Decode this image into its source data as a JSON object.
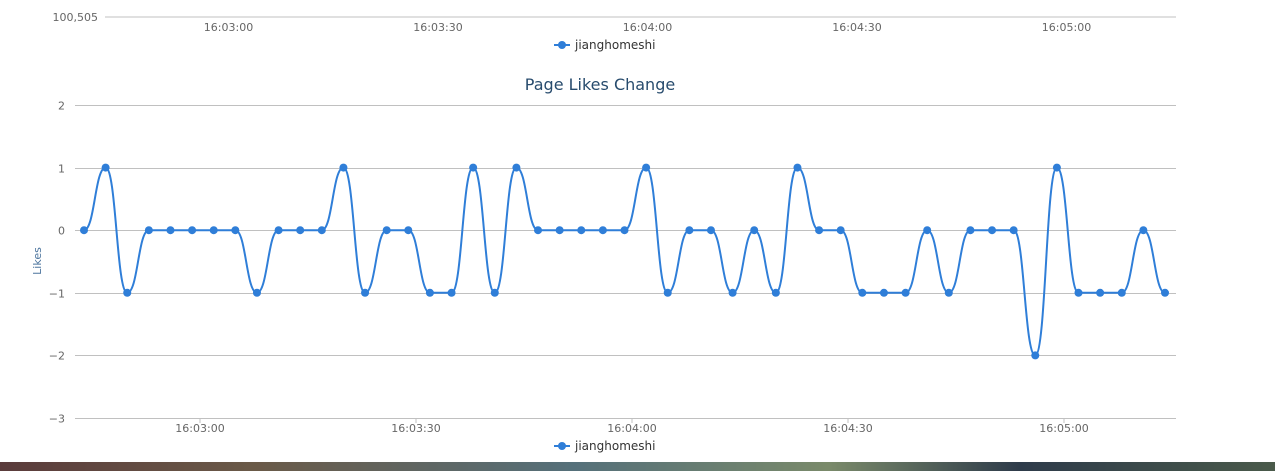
{
  "chart_data": [
    {
      "type": "line",
      "title": "",
      "ylabel": "",
      "y_tick_labels": [
        "100,505"
      ],
      "x_tick_labels": [
        "16:03:00",
        "16:03:30",
        "16:04:00",
        "16:04:30",
        "16:05:00"
      ],
      "legend": {
        "placement": "bottom-center",
        "entries": [
          "jianghomeshi"
        ]
      },
      "colors": {
        "series": "#2f7ed8",
        "grid": "#c0c0c0"
      }
    },
    {
      "type": "line",
      "title": "Page Likes Change",
      "xlabel": "",
      "ylabel": "Likes",
      "ylim": [
        -3,
        2
      ],
      "y_ticks": [
        2,
        1,
        0,
        -1,
        -2,
        -3
      ],
      "y_tick_labels": [
        "2",
        "1",
        "0",
        "−1",
        "−2",
        "−3"
      ],
      "x_tick_labels": [
        "16:03:00",
        "16:03:30",
        "16:04:00",
        "16:04:30",
        "16:05:00"
      ],
      "grid": true,
      "legend": {
        "placement": "bottom-center",
        "entries": [
          "jianghomeshi"
        ]
      },
      "colors": {
        "series": "#2f7ed8",
        "grid": "#c0c0c0",
        "title": "#274b6d"
      },
      "series": [
        {
          "name": "jianghomeshi",
          "values": [
            0,
            1,
            -1,
            0,
            0,
            0,
            0,
            0,
            -1,
            0,
            0,
            0,
            1,
            -1,
            0,
            0,
            -1,
            -1,
            1,
            -1,
            1,
            0,
            0,
            0,
            0,
            0,
            1,
            -1,
            0,
            0,
            -1,
            0,
            -1,
            1,
            0,
            0,
            -1,
            -1,
            -1,
            0,
            -1,
            0,
            0,
            0,
            -2,
            1,
            -1,
            -1,
            -1,
            0,
            -1
          ]
        }
      ]
    }
  ]
}
